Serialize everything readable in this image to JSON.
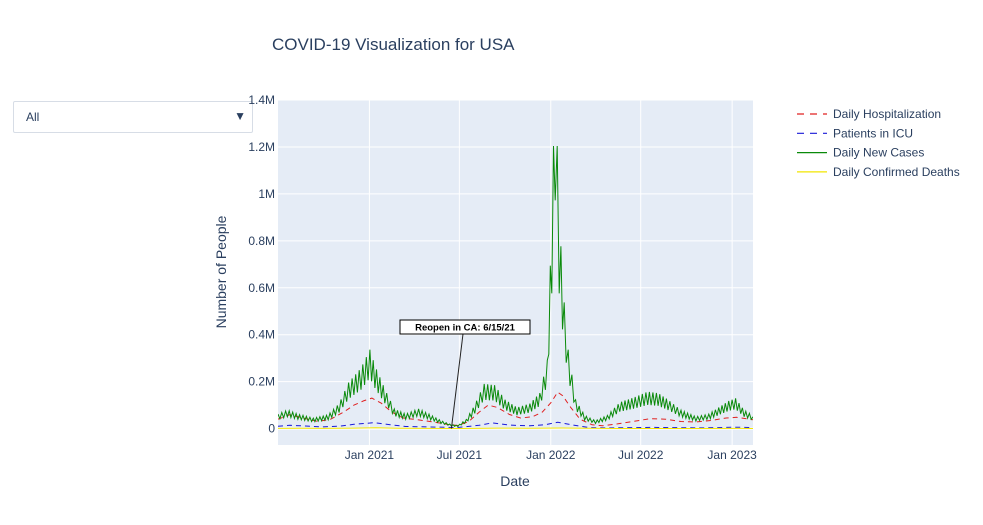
{
  "dropdown": {
    "selected": "All",
    "arrow_icon": "▼"
  },
  "chart_data": {
    "type": "line",
    "title": "COVID-19 Visualization for USA",
    "xlabel": "Date",
    "ylabel": "Number of People",
    "xlim": [
      "2020-07-01",
      "2023-02-12"
    ],
    "ylim": [
      -70000,
      1400000
    ],
    "x_ticks": [
      {
        "date": "2021-01-01",
        "label": "Jan 2021"
      },
      {
        "date": "2021-07-01",
        "label": "Jul 2021"
      },
      {
        "date": "2022-01-01",
        "label": "Jan 2022"
      },
      {
        "date": "2022-07-01",
        "label": "Jul 2022"
      },
      {
        "date": "2023-01-01",
        "label": "Jan 2023"
      }
    ],
    "y_ticks": [
      {
        "value": 0,
        "label": "0"
      },
      {
        "value": 200000,
        "label": "0.2M"
      },
      {
        "value": 400000,
        "label": "0.4M"
      },
      {
        "value": 600000,
        "label": "0.6M"
      },
      {
        "value": 800000,
        "label": "0.8M"
      },
      {
        "value": 1000000,
        "label": "1M"
      },
      {
        "value": 1200000,
        "label": "1.2M"
      },
      {
        "value": 1400000,
        "label": "1.4M"
      }
    ],
    "series": [
      {
        "name": "Daily Hospitalization",
        "color": "#e02020",
        "dash": "dashed",
        "points": [
          [
            "2020-07-01",
            40000
          ],
          [
            "2020-07-25",
            59000
          ],
          [
            "2020-08-20",
            45000
          ],
          [
            "2020-09-20",
            30000
          ],
          [
            "2020-10-15",
            40000
          ],
          [
            "2020-11-10",
            70000
          ],
          [
            "2020-12-01",
            100000
          ],
          [
            "2020-12-20",
            118000
          ],
          [
            "2021-01-06",
            130000
          ],
          [
            "2021-01-25",
            108000
          ],
          [
            "2021-02-15",
            70000
          ],
          [
            "2021-03-10",
            45000
          ],
          [
            "2021-04-10",
            37000
          ],
          [
            "2021-05-10",
            28000
          ],
          [
            "2021-06-10",
            17000
          ],
          [
            "2021-06-28",
            13000
          ],
          [
            "2021-07-20",
            30000
          ],
          [
            "2021-08-10",
            70000
          ],
          [
            "2021-08-28",
            100000
          ],
          [
            "2021-09-15",
            90000
          ],
          [
            "2021-10-10",
            60000
          ],
          [
            "2021-11-01",
            45000
          ],
          [
            "2021-11-25",
            50000
          ],
          [
            "2021-12-15",
            70000
          ],
          [
            "2022-01-01",
            110000
          ],
          [
            "2022-01-15",
            155000
          ],
          [
            "2022-01-25",
            140000
          ],
          [
            "2022-02-10",
            90000
          ],
          [
            "2022-03-01",
            40000
          ],
          [
            "2022-03-25",
            16000
          ],
          [
            "2022-04-15",
            12000
          ],
          [
            "2022-05-15",
            20000
          ],
          [
            "2022-06-15",
            30000
          ],
          [
            "2022-07-20",
            42000
          ],
          [
            "2022-08-20",
            40000
          ],
          [
            "2022-09-20",
            30000
          ],
          [
            "2022-10-20",
            28000
          ],
          [
            "2022-11-20",
            35000
          ],
          [
            "2022-12-20",
            45000
          ],
          [
            "2023-01-10",
            48000
          ],
          [
            "2023-02-12",
            38000
          ]
        ]
      },
      {
        "name": "Patients in ICU",
        "color": "#1a1ad8",
        "dash": "dashed",
        "points": [
          [
            "2020-07-01",
            10000
          ],
          [
            "2020-07-25",
            14000
          ],
          [
            "2020-08-25",
            11000
          ],
          [
            "2020-09-25",
            7000
          ],
          [
            "2020-11-01",
            10000
          ],
          [
            "2020-12-01",
            18000
          ],
          [
            "2021-01-10",
            25000
          ],
          [
            "2021-02-10",
            17000
          ],
          [
            "2021-03-15",
            9000
          ],
          [
            "2021-05-01",
            7000
          ],
          [
            "2021-06-25",
            4000
          ],
          [
            "2021-08-10",
            14000
          ],
          [
            "2021-09-05",
            24000
          ],
          [
            "2021-10-10",
            15000
          ],
          [
            "2021-11-20",
            12000
          ],
          [
            "2021-12-20",
            16000
          ],
          [
            "2022-01-15",
            27000
          ],
          [
            "2022-02-15",
            15000
          ],
          [
            "2022-03-20",
            4000
          ],
          [
            "2022-05-01",
            3000
          ],
          [
            "2022-06-15",
            4000
          ],
          [
            "2022-07-25",
            5000
          ],
          [
            "2022-09-01",
            4000
          ],
          [
            "2022-11-01",
            3000
          ],
          [
            "2023-01-10",
            6000
          ],
          [
            "2023-02-12",
            4000
          ]
        ]
      },
      {
        "name": "Daily New Cases",
        "color": "#0a8a0a",
        "dash": "solid",
        "points": [
          [
            "2020-07-01",
            55000
          ],
          [
            "2020-07-20",
            70000
          ],
          [
            "2020-08-10",
            55000
          ],
          [
            "2020-09-10",
            40000
          ],
          [
            "2020-10-10",
            52000
          ],
          [
            "2020-11-01",
            95000
          ],
          [
            "2020-11-20",
            175000
          ],
          [
            "2020-12-15",
            230000
          ],
          [
            "2021-01-02",
            300000
          ],
          [
            "2021-01-12",
            240000
          ],
          [
            "2021-02-01",
            150000
          ],
          [
            "2021-02-20",
            75000
          ],
          [
            "2021-03-15",
            55000
          ],
          [
            "2021-04-10",
            75000
          ],
          [
            "2021-05-01",
            55000
          ],
          [
            "2021-05-25",
            30000
          ],
          [
            "2021-06-15",
            15000
          ],
          [
            "2021-06-28",
            12000
          ],
          [
            "2021-07-15",
            35000
          ],
          [
            "2021-08-01",
            90000
          ],
          [
            "2021-08-20",
            170000
          ],
          [
            "2021-09-10",
            165000
          ],
          [
            "2021-10-01",
            110000
          ],
          [
            "2021-10-25",
            80000
          ],
          [
            "2021-11-20",
            95000
          ],
          [
            "2021-12-10",
            135000
          ],
          [
            "2021-12-25",
            260000
          ],
          [
            "2022-01-03",
            800000
          ],
          [
            "2022-01-10",
            1350000
          ],
          [
            "2022-01-18",
            800000
          ],
          [
            "2022-01-28",
            480000
          ],
          [
            "2022-02-05",
            300000
          ],
          [
            "2022-02-20",
            110000
          ],
          [
            "2022-03-10",
            50000
          ],
          [
            "2022-04-01",
            30000
          ],
          [
            "2022-04-25",
            50000
          ],
          [
            "2022-05-20",
            100000
          ],
          [
            "2022-06-20",
            120000
          ],
          [
            "2022-07-15",
            140000
          ],
          [
            "2022-08-05",
            135000
          ],
          [
            "2022-08-25",
            110000
          ],
          [
            "2022-09-20",
            70000
          ],
          [
            "2022-10-20",
            45000
          ],
          [
            "2022-11-15",
            55000
          ],
          [
            "2022-12-05",
            80000
          ],
          [
            "2022-12-25",
            105000
          ],
          [
            "2023-01-08",
            115000
          ],
          [
            "2023-01-25",
            70000
          ],
          [
            "2023-02-12",
            50000
          ]
        ]
      },
      {
        "name": "Daily Confirmed Deaths",
        "color": "#f2e600",
        "dash": "solid",
        "points": [
          [
            "2020-07-01",
            700
          ],
          [
            "2020-08-15",
            1100
          ],
          [
            "2020-10-01",
            800
          ],
          [
            "2020-12-01",
            2200
          ],
          [
            "2021-01-15",
            3300
          ],
          [
            "2021-03-01",
            1600
          ],
          [
            "2021-05-01",
            700
          ],
          [
            "2021-07-01",
            300
          ],
          [
            "2021-09-15",
            1900
          ],
          [
            "2021-11-15",
            1200
          ],
          [
            "2022-01-25",
            2500
          ],
          [
            "2022-03-15",
            1000
          ],
          [
            "2022-05-15",
            400
          ],
          [
            "2022-07-15",
            450
          ],
          [
            "2022-10-15",
            400
          ],
          [
            "2023-01-15",
            600
          ],
          [
            "2023-02-12",
            500
          ]
        ]
      }
    ],
    "annotations": [
      {
        "text": "Reopen in CA: 6/15/21",
        "date": "2021-06-15",
        "value": 0
      }
    ]
  }
}
